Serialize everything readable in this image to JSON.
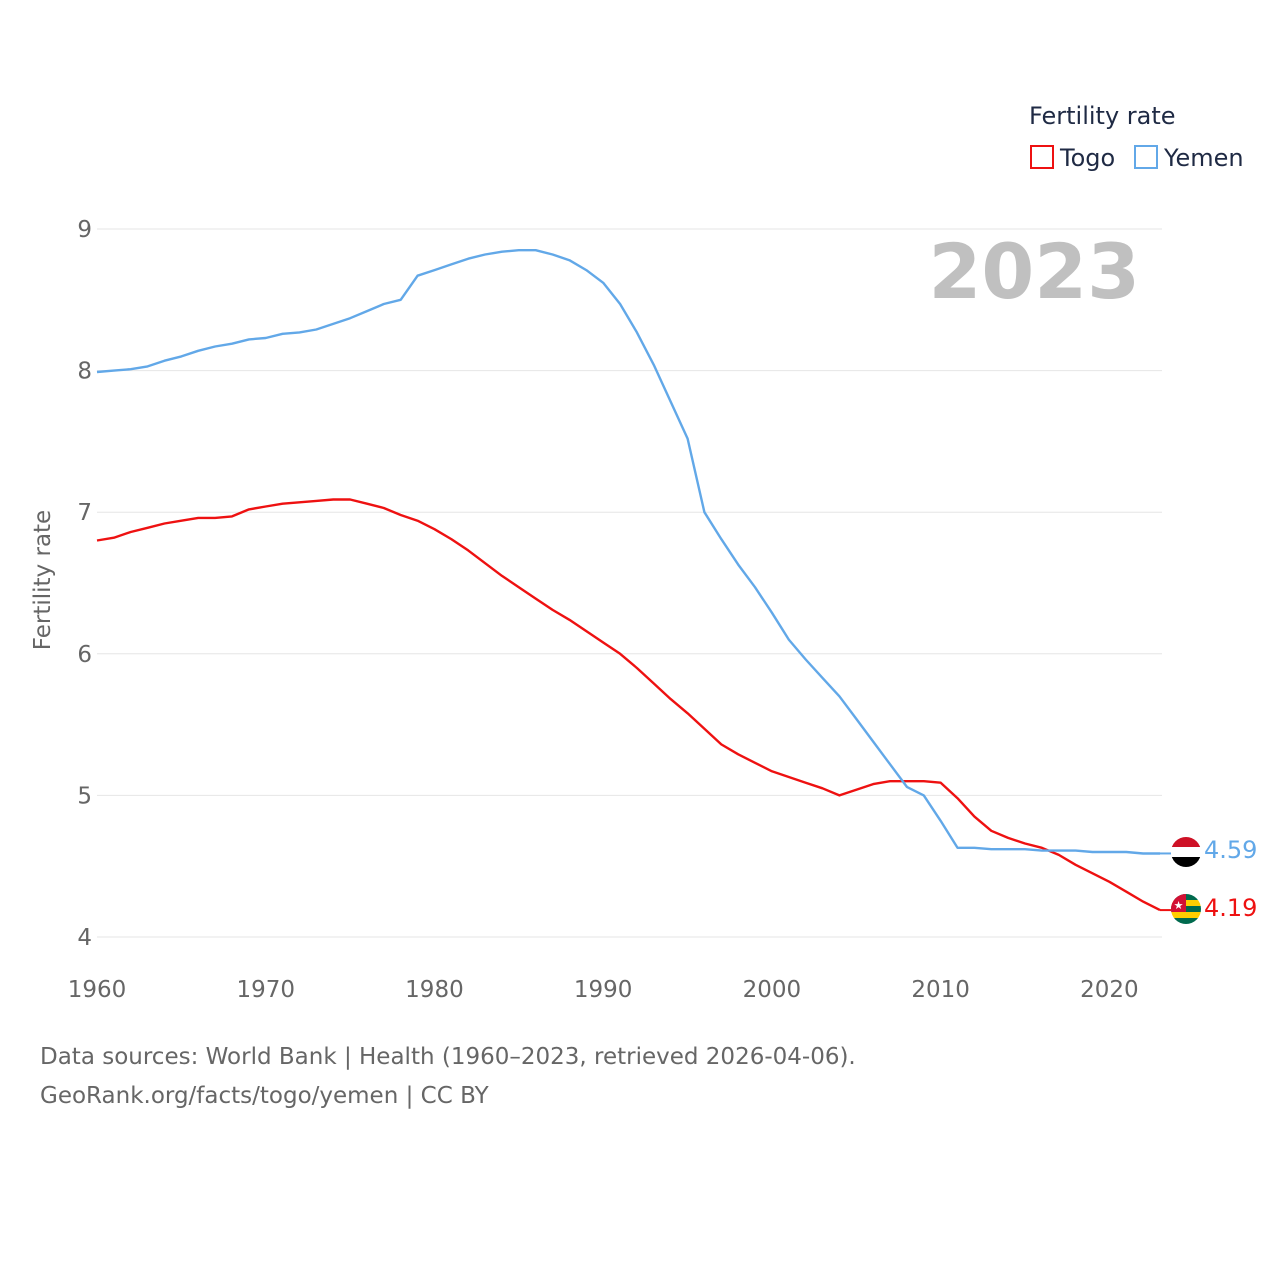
{
  "chart_data": {
    "type": "line",
    "title": "",
    "xlabel": "",
    "ylabel": "Fertility rate",
    "legend_title": "Fertility rate",
    "legend_position": "top-right",
    "year_label": "2023",
    "xlim": [
      1960,
      2023
    ],
    "ylim": [
      4,
      9
    ],
    "x_ticks": [
      1960,
      1970,
      1980,
      1990,
      2000,
      2010,
      2020
    ],
    "y_ticks": [
      4,
      5,
      6,
      7,
      8,
      9
    ],
    "grid": true,
    "x": [
      1960,
      1961,
      1962,
      1963,
      1964,
      1965,
      1966,
      1967,
      1968,
      1969,
      1970,
      1971,
      1972,
      1973,
      1974,
      1975,
      1976,
      1977,
      1978,
      1979,
      1980,
      1981,
      1982,
      1983,
      1984,
      1985,
      1986,
      1987,
      1988,
      1989,
      1990,
      1991,
      1992,
      1993,
      1994,
      1995,
      1996,
      1997,
      1998,
      1999,
      2000,
      2001,
      2002,
      2003,
      2004,
      2005,
      2006,
      2007,
      2008,
      2009,
      2010,
      2011,
      2012,
      2013,
      2014,
      2015,
      2016,
      2017,
      2018,
      2019,
      2020,
      2021,
      2022,
      2023
    ],
    "series": [
      {
        "name": "Togo",
        "color": "#ee1111",
        "end_label": "4.19",
        "values": [
          6.8,
          6.82,
          6.86,
          6.89,
          6.92,
          6.94,
          6.96,
          6.96,
          6.97,
          7.02,
          7.04,
          7.06,
          7.07,
          7.08,
          7.09,
          7.09,
          7.06,
          7.03,
          6.98,
          6.94,
          6.88,
          6.81,
          6.73,
          6.64,
          6.55,
          6.47,
          6.39,
          6.31,
          6.24,
          6.16,
          6.08,
          6.0,
          5.9,
          5.79,
          5.68,
          5.58,
          5.47,
          5.36,
          5.29,
          5.23,
          5.17,
          5.13,
          5.09,
          5.05,
          5.0,
          5.04,
          5.08,
          5.1,
          5.1,
          5.1,
          5.09,
          4.98,
          4.85,
          4.75,
          4.7,
          4.66,
          4.63,
          4.58,
          4.51,
          4.45,
          4.39,
          4.32,
          4.25,
          4.19
        ]
      },
      {
        "name": "Yemen",
        "color": "#62a8e8",
        "end_label": "4.59",
        "values": [
          7.99,
          8.0,
          8.01,
          8.03,
          8.07,
          8.1,
          8.14,
          8.17,
          8.19,
          8.22,
          8.23,
          8.26,
          8.27,
          8.29,
          8.33,
          8.37,
          8.42,
          8.47,
          8.5,
          8.67,
          8.71,
          8.75,
          8.79,
          8.82,
          8.84,
          8.85,
          8.85,
          8.82,
          8.78,
          8.71,
          8.62,
          8.47,
          8.27,
          8.04,
          7.78,
          7.52,
          7.0,
          6.81,
          6.63,
          6.47,
          6.29,
          6.1,
          5.96,
          5.83,
          5.7,
          5.54,
          5.38,
          5.22,
          5.06,
          5.0,
          4.82,
          4.63,
          4.63,
          4.62,
          4.62,
          4.62,
          4.61,
          4.61,
          4.61,
          4.6,
          4.6,
          4.6,
          4.59,
          4.59
        ]
      }
    ]
  },
  "footer": {
    "line1": "Data sources: World Bank | Health (1960–2023, retrieved 2026-04-06).",
    "line2": "GeoRank.org/facts/togo/yemen | CC BY"
  },
  "flags": [
    {
      "name": "Yemen",
      "colors": [
        "#ce1126",
        "#ffffff",
        "#000000"
      ]
    },
    {
      "name": "Togo",
      "colors": [
        "#006a4e",
        "#ffce00",
        "#d21034",
        "#ffffff"
      ]
    }
  ]
}
